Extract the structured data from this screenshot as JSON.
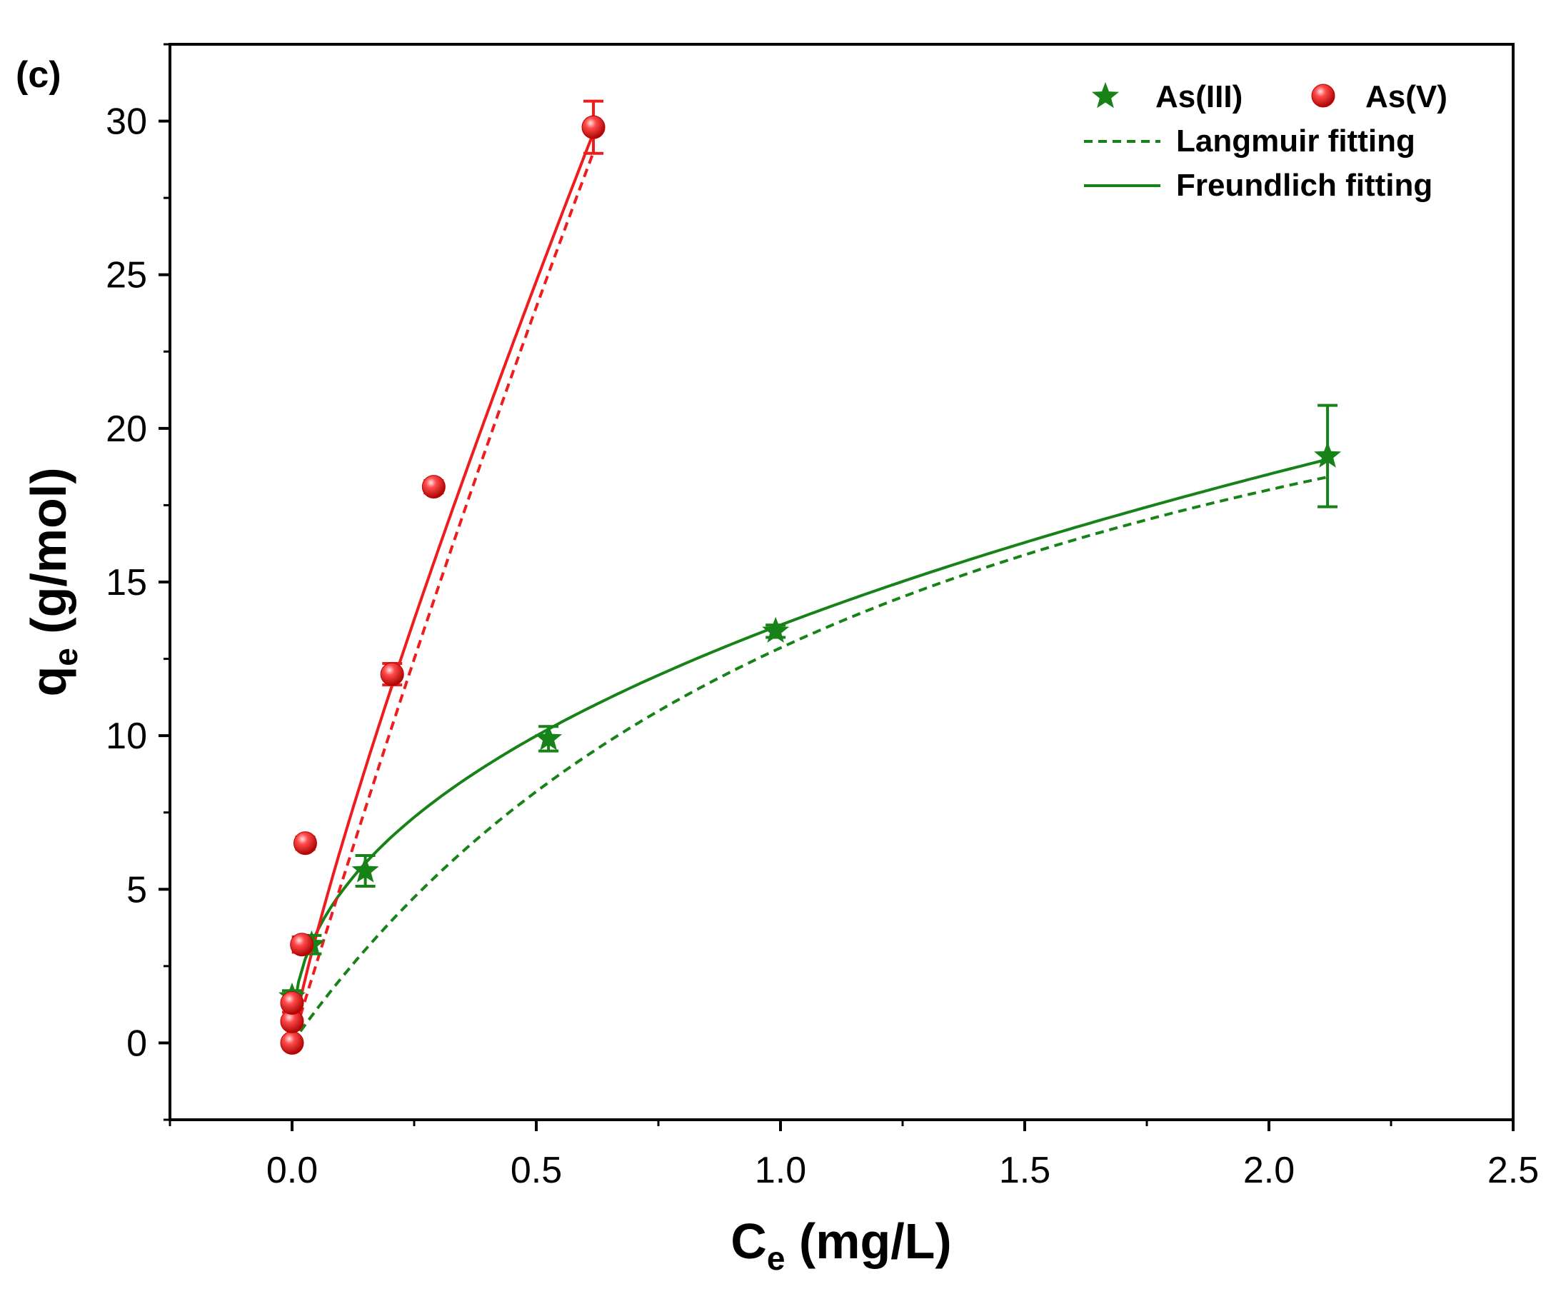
{
  "panel_label": "(c)",
  "colors": {
    "as3": "#178217",
    "as5": "#ee1c1c",
    "axis": "#000000"
  },
  "chart_data": {
    "type": "scatter",
    "xlabel_main": "C",
    "xlabel_sub": "e",
    "xlabel_unit": " (mg/L)",
    "ylabel_main": "q",
    "ylabel_sub": "e",
    "ylabel_unit": " (g/mol)",
    "xlim": [
      -0.25,
      2.5
    ],
    "ylim": [
      -2.5,
      32.5
    ],
    "xticks": [
      0.0,
      0.5,
      1.0,
      1.5,
      2.0,
      2.5
    ],
    "xtick_labels": [
      "0.0",
      "0.5",
      "1.0",
      "1.5",
      "2.0",
      "2.5"
    ],
    "xminor": [
      -0.25,
      0.25,
      0.75,
      1.25,
      1.75,
      2.25
    ],
    "yticks": [
      0,
      5,
      10,
      15,
      20,
      25,
      30
    ],
    "ytick_labels": [
      "0",
      "5",
      "10",
      "15",
      "20",
      "25",
      "30"
    ],
    "yminor": [
      -2.5,
      2.5,
      7.5,
      12.5,
      17.5,
      22.5,
      27.5,
      32.5
    ],
    "legend": {
      "position": "top-right",
      "entries": [
        "As(III)",
        "As(V)",
        "Langmuir fitting",
        "Freundlich fitting"
      ]
    },
    "series": [
      {
        "name": "As(III)",
        "marker": "star",
        "x": [
          0.0,
          0.04,
          0.15,
          0.525,
          0.99,
          2.12
        ],
        "y": [
          1.5,
          3.2,
          5.6,
          9.9,
          13.4,
          19.1
        ],
        "err": [
          0.2,
          0.3,
          0.5,
          0.4,
          0.2,
          1.65
        ],
        "langmuir": {
          "qm": 30.0,
          "kl": 0.75
        },
        "freundlich": {
          "kf": 13.6,
          "n": 2.25
        }
      },
      {
        "name": "As(V)",
        "marker": "sphere",
        "x": [
          0.0,
          0.0,
          0.0,
          0.02,
          0.027,
          0.205,
          0.29,
          0.617
        ],
        "y": [
          0.0,
          0.7,
          1.3,
          3.2,
          6.5,
          12.0,
          18.1,
          29.8
        ],
        "err": [
          0.0,
          0.0,
          0.3,
          0.25,
          0.2,
          0.35,
          0.2,
          0.85
        ],
        "langmuir": {
          "qm": 290.0,
          "kl": 0.18
        },
        "freundlich": {
          "kf": 44.6,
          "n": 1.18
        }
      }
    ]
  }
}
